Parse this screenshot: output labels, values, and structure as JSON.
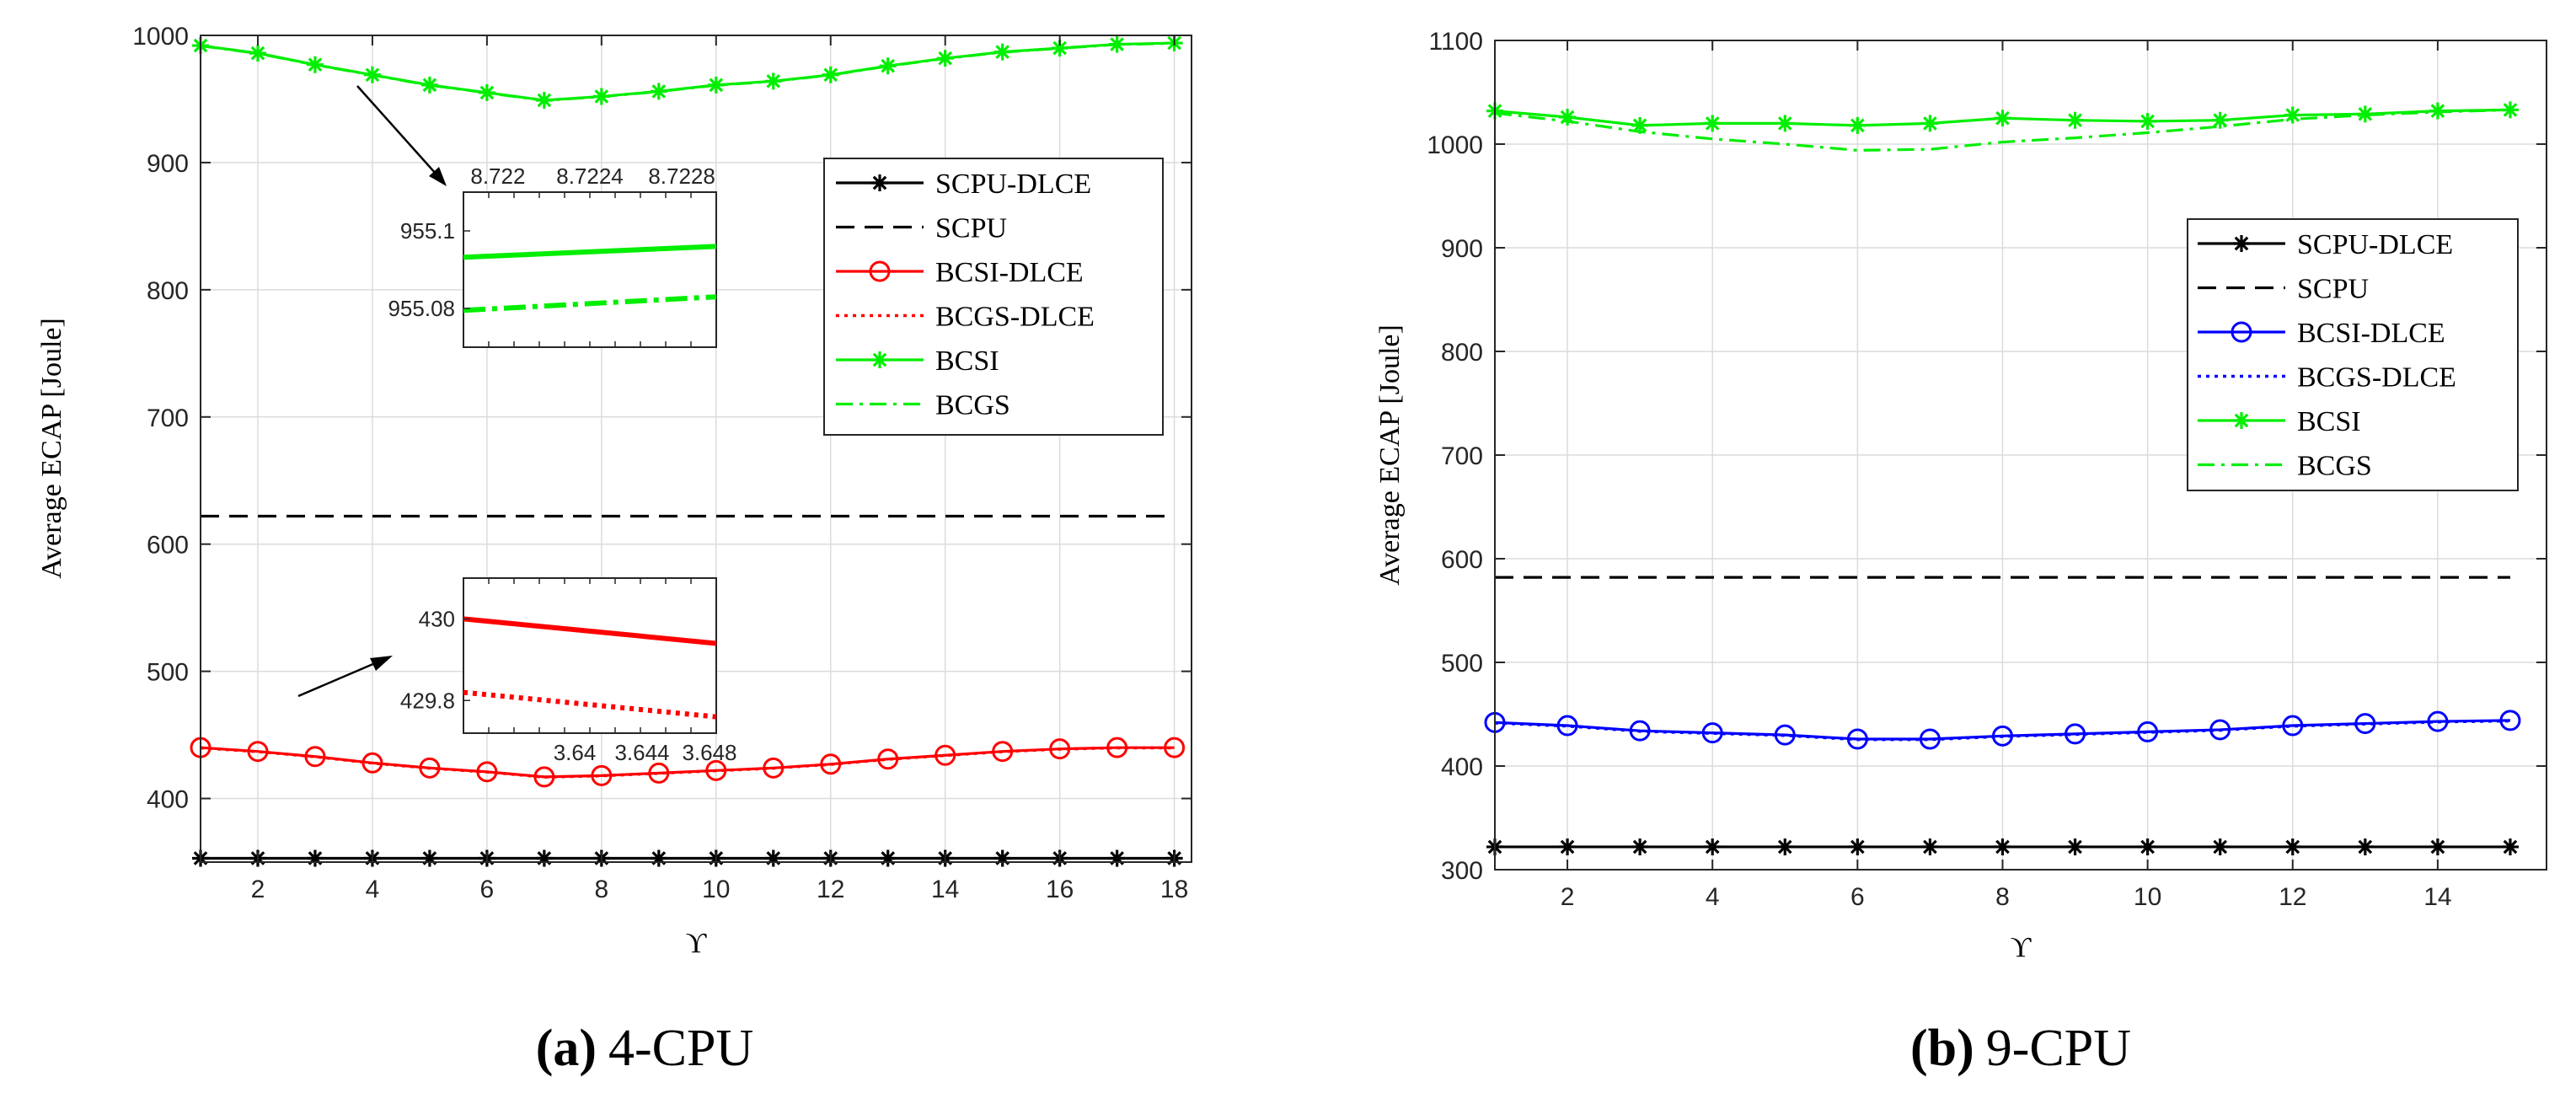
{
  "colors": {
    "black": "#000000",
    "red": "#ff0000",
    "green": "#00ee00",
    "blue": "#0000ff"
  },
  "chart_data": [
    {
      "type": "line",
      "caption_letter": "(a)",
      "caption_text": "4-CPU",
      "xlabel": "ϒ",
      "ylabel": "Average ECAP [Joule]",
      "xlim": [
        1,
        18.3
      ],
      "ylim": [
        350,
        1000
      ],
      "xticks": [
        2,
        4,
        6,
        8,
        10,
        12,
        14,
        16,
        18
      ],
      "yticks": [
        400,
        500,
        600,
        700,
        800,
        900,
        1000
      ],
      "grid": true,
      "legend_position": "upper-right",
      "x": [
        1,
        2,
        3,
        4,
        5,
        6,
        7,
        8,
        9,
        10,
        11,
        12,
        13,
        14,
        15,
        16,
        17,
        18
      ],
      "series": [
        {
          "name": "SCPU-DLCE",
          "color": "#000000",
          "dash": "solid",
          "marker": "star",
          "values": [
            353,
            353,
            353,
            353,
            353,
            353,
            353,
            353,
            353,
            353,
            353,
            353,
            353,
            353,
            353,
            353,
            353,
            353
          ]
        },
        {
          "name": "SCPU",
          "color": "#000000",
          "dash": "dashed",
          "marker": "none",
          "values": [
            622,
            622,
            622,
            622,
            622,
            622,
            622,
            622,
            622,
            622,
            622,
            622,
            622,
            622,
            622,
            622,
            622,
            622
          ]
        },
        {
          "name": "BCSI-DLCE",
          "color": "#ff0000",
          "dash": "solid",
          "marker": "circle",
          "values": [
            440,
            437,
            433,
            428,
            424,
            421,
            417,
            418,
            420,
            422,
            424,
            427,
            431,
            434,
            437,
            439,
            440,
            440
          ]
        },
        {
          "name": "BCGS-DLCE",
          "color": "#ff0000",
          "dash": "dotted",
          "marker": "none",
          "values": [
            439.8,
            436.8,
            432.8,
            427.8,
            423.8,
            420.8,
            416.8,
            417.8,
            419.8,
            421.8,
            423.8,
            426.8,
            430.8,
            433.8,
            436.8,
            438.8,
            439.8,
            439.8
          ]
        },
        {
          "name": "BCSI",
          "color": "#00ee00",
          "dash": "solid",
          "marker": "star",
          "values": [
            992,
            986,
            977,
            969,
            961,
            955,
            949,
            952,
            956,
            961,
            964,
            969,
            976,
            982,
            987,
            990,
            993,
            994
          ]
        },
        {
          "name": "BCGS",
          "color": "#00ee00",
          "dash": "dashdot",
          "marker": "none",
          "values": [
            991.8,
            985.8,
            976.8,
            968.8,
            960.8,
            954.8,
            948.8,
            951.8,
            955.8,
            960.8,
            963.8,
            968.8,
            975.8,
            981.8,
            986.8,
            989.8,
            992.8,
            993.8
          ]
        }
      ],
      "insets": [
        {
          "position": "upper",
          "xlim": [
            8.72185,
            8.72295
          ],
          "ylim": [
            955.07,
            955.11
          ],
          "xticks": [
            8.722,
            8.7224,
            8.7228
          ],
          "xtick_labels": [
            "8.722",
            "8.7224",
            "8.7228"
          ],
          "yticks": [
            955.08,
            955.1
          ],
          "ytick_labels": [
            "955.08",
            "955.1"
          ],
          "xticks_on_top": true,
          "lines": [
            {
              "color": "#00ee00",
              "dash": "solid",
              "x": [
                8.72185,
                8.72295
              ],
              "y": [
                955.0932,
                955.096
              ]
            },
            {
              "color": "#00ee00",
              "dash": "dashdot",
              "x": [
                8.72185,
                8.72295
              ],
              "y": [
                955.0795,
                955.083
              ]
            }
          ]
        },
        {
          "position": "lower",
          "xlim": [
            3.6334,
            3.6484
          ],
          "ylim": [
            429.72,
            430.1
          ],
          "xticks": [
            3.64,
            3.644,
            3.648
          ],
          "xtick_labels": [
            "3.64",
            "3.644",
            "3.648"
          ],
          "yticks": [
            429.8,
            430
          ],
          "ytick_labels": [
            "429.8",
            "430"
          ],
          "xticks_on_top": false,
          "lines": [
            {
              "color": "#ff0000",
              "dash": "solid",
              "x": [
                3.6334,
                3.6484
              ],
              "y": [
                430.0,
                429.94
              ]
            },
            {
              "color": "#ff0000",
              "dash": "dotted",
              "x": [
                3.6334,
                3.6484
              ],
              "y": [
                429.82,
                429.76
              ]
            }
          ]
        }
      ]
    },
    {
      "type": "line",
      "caption_letter": "(b)",
      "caption_text": "9-CPU",
      "xlabel": "ϒ",
      "ylabel": "Average ECAP [Joule]",
      "xlim": [
        1,
        15.5
      ],
      "ylim": [
        300,
        1100
      ],
      "xticks": [
        2,
        4,
        6,
        8,
        10,
        12,
        14
      ],
      "yticks": [
        300,
        400,
        500,
        600,
        700,
        800,
        900,
        1000,
        1100
      ],
      "grid": true,
      "legend_position": "right",
      "x": [
        1,
        2,
        3,
        4,
        5,
        6,
        7,
        8,
        9,
        10,
        11,
        12,
        13,
        14,
        15
      ],
      "series": [
        {
          "name": "SCPU-DLCE",
          "color": "#000000",
          "dash": "solid",
          "marker": "star",
          "values": [
            322,
            322,
            322,
            322,
            322,
            322,
            322,
            322,
            322,
            322,
            322,
            322,
            322,
            322,
            322
          ]
        },
        {
          "name": "SCPU",
          "color": "#000000",
          "dash": "dashed",
          "marker": "none",
          "values": [
            582,
            582,
            582,
            582,
            582,
            582,
            582,
            582,
            582,
            582,
            582,
            582,
            582,
            582,
            582
          ]
        },
        {
          "name": "BCSI-DLCE",
          "color": "#0000ff",
          "dash": "solid",
          "marker": "circle",
          "values": [
            442,
            439,
            434,
            432,
            430,
            426,
            426,
            429,
            431,
            433,
            435,
            439,
            441,
            443,
            444
          ]
        },
        {
          "name": "BCGS-DLCE",
          "color": "#0000ff",
          "dash": "dotted",
          "marker": "none",
          "values": [
            441.5,
            438.5,
            433.5,
            431.5,
            429.5,
            425.5,
            425.5,
            428.5,
            430.5,
            432.5,
            434.5,
            438.5,
            440.5,
            442.5,
            443.5
          ]
        },
        {
          "name": "BCSI",
          "color": "#00ee00",
          "dash": "solid",
          "marker": "star",
          "values": [
            1032,
            1026,
            1018,
            1020,
            1020,
            1018,
            1020,
            1025,
            1023,
            1022,
            1023,
            1028,
            1029,
            1032,
            1033
          ]
        },
        {
          "name": "BCGS",
          "color": "#00ee00",
          "dash": "dashdot",
          "marker": "none",
          "values": [
            1030,
            1022,
            1012,
            1005,
            1000,
            994,
            995,
            1002,
            1006,
            1011,
            1017,
            1024,
            1028,
            1031,
            1033
          ]
        }
      ]
    }
  ]
}
